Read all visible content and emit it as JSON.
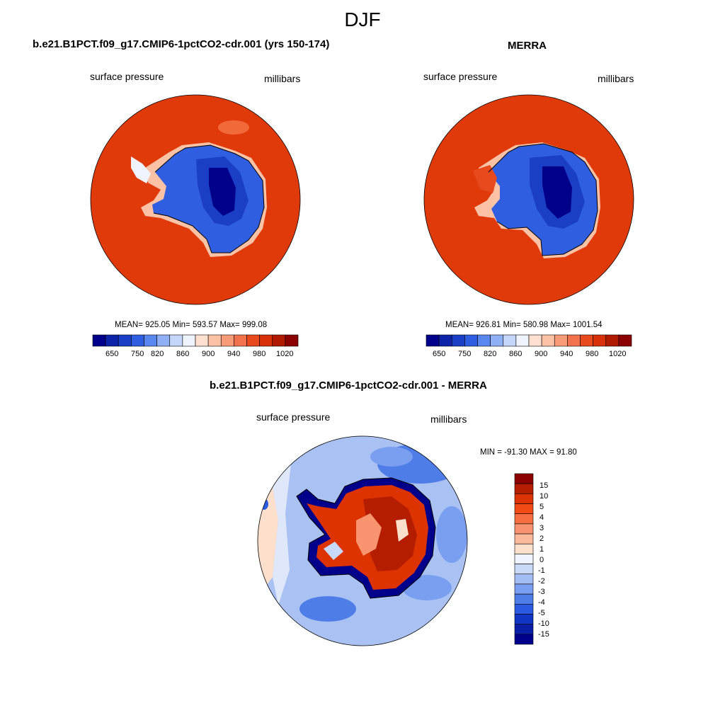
{
  "season": "DJF",
  "panels": {
    "model": {
      "title": "b.e21.B1PCT.f09_g17.CMIP6-1pctCO2-cdr.001 (yrs 150-174)",
      "variable": "surface pressure",
      "units": "millibars",
      "stats": "MEAN= 925.05  Min= 593.57  Max= 999.08"
    },
    "obs": {
      "title": "MERRA",
      "variable": "surface pressure",
      "units": "millibars",
      "stats": "MEAN= 926.81  Min= 580.98  Max= 1001.54"
    },
    "diff": {
      "title": "b.e21.B1PCT.f09_g17.CMIP6-1pctCO2-cdr.001 - MERRA",
      "variable": "surface pressure",
      "units": "millibars",
      "stats": "MIN = -91.30 MAX =  91.80"
    }
  },
  "colorbar_main": {
    "tick_labels": [
      "650",
      "750",
      "820",
      "860",
      "900",
      "940",
      "980",
      "1020"
    ],
    "colors": [
      "#00008b",
      "#0d24a8",
      "#1a3fc4",
      "#2f5fe0",
      "#5a86f0",
      "#8fb0f5",
      "#c4d6f9",
      "#eef3fc",
      "#fde0d0",
      "#fbc2a6",
      "#f89c78",
      "#f2724d",
      "#e84a1e",
      "#d83008",
      "#b01a00",
      "#8b0000"
    ]
  },
  "colorbar_diff": {
    "tick_labels": [
      "15",
      "10",
      "5",
      "4",
      "3",
      "2",
      "1",
      "0",
      "-1",
      "-2",
      "-3",
      "-4",
      "-5",
      "-10",
      "-15"
    ],
    "colors": [
      "#8b0000",
      "#b41d00",
      "#dd3300",
      "#f24b16",
      "#f66f40",
      "#f89470",
      "#fbb99b",
      "#fde0cc",
      "#eef3fc",
      "#c9d9f8",
      "#a2bdf4",
      "#7b9ff0",
      "#4f7de8",
      "#2a5ae0",
      "#1035c6",
      "#0a1fa6",
      "#00008b"
    ]
  }
}
